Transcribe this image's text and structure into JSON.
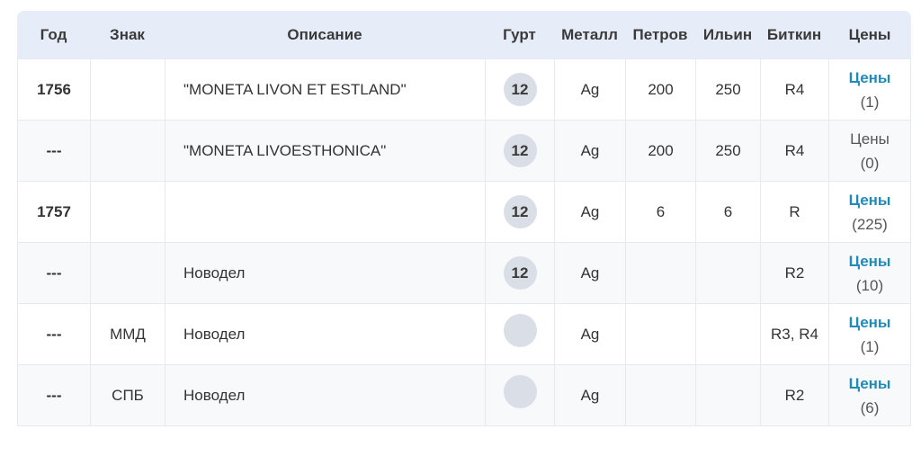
{
  "headers": {
    "year": "Год",
    "mark": "Знак",
    "description": "Описание",
    "edge": "Гурт",
    "metal": "Металл",
    "petrov": "Петров",
    "ilyin": "Ильин",
    "bitkin": "Биткин",
    "prices": "Цены"
  },
  "rows": [
    {
      "year": "1756",
      "mark": "",
      "description": "\"MONETA LIVON ET ESTLAND\"",
      "edge": "12",
      "metal": "Ag",
      "petrov": "200",
      "ilyin": "250",
      "bitkin": "R4",
      "prices_label": "Цены",
      "prices_count": "(1)"
    },
    {
      "year": "---",
      "mark": "",
      "description": "\"MONETA LIVOESTHONICA\"",
      "edge": "12",
      "metal": "Ag",
      "petrov": "200",
      "ilyin": "250",
      "bitkin": "R4",
      "prices_label": "Цены",
      "prices_count": "(0)"
    },
    {
      "year": "1757",
      "mark": "",
      "description": "",
      "edge": "12",
      "metal": "Ag",
      "petrov": "6",
      "ilyin": "6",
      "bitkin": "R",
      "prices_label": "Цены",
      "prices_count": "(225)"
    },
    {
      "year": "---",
      "mark": "",
      "description": "Новодел",
      "edge": "12",
      "metal": "Ag",
      "petrov": "",
      "ilyin": "",
      "bitkin": "R2",
      "prices_label": "Цены",
      "prices_count": "(10)"
    },
    {
      "year": "---",
      "mark": "ММД",
      "description": "Новодел",
      "edge": "",
      "metal": "Ag",
      "petrov": "",
      "ilyin": "",
      "bitkin": "R3, R4",
      "prices_label": "Цены",
      "prices_count": "(1)"
    },
    {
      "year": "---",
      "mark": "СПБ",
      "description": "Новодел",
      "edge": "",
      "metal": "Ag",
      "petrov": "",
      "ilyin": "",
      "bitkin": "R2",
      "prices_label": "Цены",
      "prices_count": "(6)"
    }
  ],
  "colors": {
    "header_bg": "#e7edf8",
    "link": "#1f8bb8",
    "edge_badge": "#d9dee7"
  }
}
